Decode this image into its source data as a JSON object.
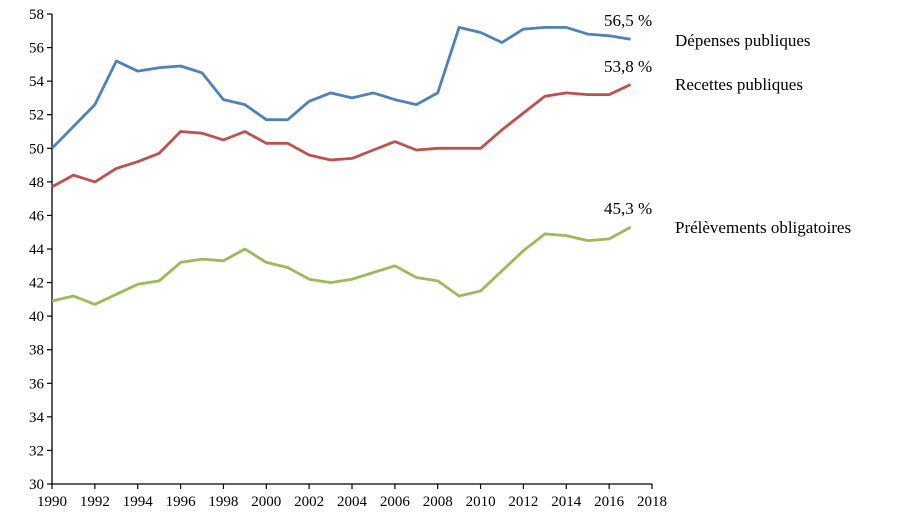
{
  "chart_data": {
    "type": "line",
    "x": [
      1990,
      1991,
      1992,
      1993,
      1994,
      1995,
      1996,
      1997,
      1998,
      1999,
      2000,
      2001,
      2002,
      2003,
      2004,
      2005,
      2006,
      2007,
      2008,
      2009,
      2010,
      2011,
      2012,
      2013,
      2014,
      2015,
      2016,
      2017
    ],
    "xlim": [
      1990,
      2018
    ],
    "ylim": [
      30,
      58
    ],
    "xticks": [
      "1990",
      "1992",
      "1994",
      "1996",
      "1998",
      "2000",
      "2002",
      "2004",
      "2006",
      "2008",
      "2010",
      "2012",
      "2014",
      "2016",
      "2018"
    ],
    "yticks": [
      "30",
      "32",
      "34",
      "36",
      "38",
      "40",
      "42",
      "44",
      "46",
      "48",
      "50",
      "52",
      "54",
      "56",
      "58"
    ],
    "grid": false,
    "legend": "right, inline labels",
    "series": [
      {
        "name": "Dépenses publiques",
        "color": "#4F81BD",
        "end_label": "56,5 %",
        "values": [
          50.0,
          51.3,
          52.6,
          55.2,
          54.6,
          54.8,
          54.9,
          54.5,
          52.9,
          52.6,
          51.7,
          51.7,
          52.8,
          53.3,
          53.0,
          53.3,
          52.9,
          52.6,
          53.3,
          57.2,
          56.9,
          56.3,
          57.1,
          57.2,
          57.2,
          56.8,
          56.7,
          56.5
        ]
      },
      {
        "name": "Recettes publiques",
        "color": "#C0504D",
        "end_label": "53,8 %",
        "values": [
          47.7,
          48.4,
          48.0,
          48.8,
          49.2,
          49.7,
          51.0,
          50.9,
          50.5,
          51.0,
          50.3,
          50.3,
          49.6,
          49.3,
          49.4,
          49.9,
          50.4,
          49.9,
          50.0,
          50.0,
          50.0,
          51.1,
          52.1,
          53.1,
          53.3,
          53.2,
          53.2,
          53.8
        ]
      },
      {
        "name": "Prélèvements obligatoires",
        "color": "#9BBB59",
        "end_label": "45,3 %",
        "values": [
          40.9,
          41.2,
          40.7,
          41.3,
          41.9,
          42.1,
          43.2,
          43.4,
          43.3,
          44.0,
          43.2,
          42.9,
          42.2,
          42.0,
          42.2,
          42.6,
          43.0,
          42.3,
          42.1,
          41.2,
          41.5,
          42.7,
          43.9,
          44.9,
          44.8,
          44.5,
          44.6,
          45.3
        ]
      }
    ]
  }
}
